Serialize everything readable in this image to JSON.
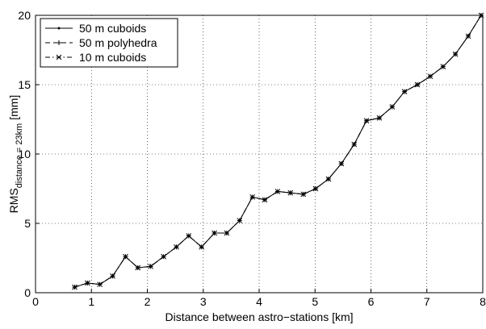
{
  "chart_data": {
    "type": "line",
    "xlabel": "Distance between astro−stations [km]",
    "ylabel": "RMS",
    "ylabel_subscript": "distance = 23km",
    "ylabel_unit": "[mm]",
    "xlim": [
      0,
      8
    ],
    "xticks": [
      0,
      1,
      2,
      3,
      4,
      5,
      6,
      7,
      8
    ],
    "ylim": [
      0,
      20
    ],
    "yticks": [
      0,
      5,
      10,
      15,
      20
    ],
    "grid": true,
    "legend": "upper-left",
    "x": [
      0.7,
      0.93,
      1.15,
      1.38,
      1.61,
      1.83,
      2.06,
      2.29,
      2.52,
      2.74,
      2.97,
      3.2,
      3.42,
      3.65,
      3.88,
      4.1,
      4.33,
      4.56,
      4.79,
      5.01,
      5.24,
      5.47,
      5.7,
      5.92,
      6.15,
      6.38,
      6.6,
      6.83,
      7.06,
      7.29,
      7.51,
      7.74,
      7.97
    ],
    "series": [
      {
        "name": "50 m cuboids",
        "color": "#000000",
        "dash": "solid",
        "marker": "dot",
        "values": [
          0.4,
          0.7,
          0.6,
          1.2,
          2.6,
          1.8,
          1.9,
          2.6,
          3.3,
          4.1,
          3.3,
          4.3,
          4.3,
          5.2,
          6.9,
          6.7,
          7.3,
          7.2,
          7.1,
          7.5,
          8.2,
          9.3,
          10.7,
          12.4,
          12.6,
          13.4,
          14.5,
          15.0,
          15.6,
          16.3,
          17.2,
          18.5,
          20.0
        ]
      },
      {
        "name": "50 m polyhedra",
        "color": "#000000",
        "dash": "dashed",
        "marker": "plus",
        "values": [
          0.4,
          0.7,
          0.6,
          1.2,
          2.6,
          1.8,
          1.9,
          2.6,
          3.3,
          4.1,
          3.3,
          4.3,
          4.3,
          5.2,
          6.9,
          6.7,
          7.3,
          7.2,
          7.1,
          7.5,
          8.2,
          9.3,
          10.7,
          12.4,
          12.6,
          13.4,
          14.5,
          15.0,
          15.6,
          16.3,
          17.2,
          18.5,
          20.0
        ]
      },
      {
        "name": "10 m cuboids",
        "color": "#000000",
        "dash": "dashdot",
        "marker": "x",
        "values": [
          0.4,
          0.7,
          0.6,
          1.2,
          2.6,
          1.8,
          1.9,
          2.6,
          3.3,
          4.1,
          3.3,
          4.3,
          4.3,
          5.2,
          6.9,
          6.7,
          7.3,
          7.2,
          7.1,
          7.5,
          8.2,
          9.3,
          10.7,
          12.4,
          12.6,
          13.4,
          14.5,
          15.0,
          15.6,
          16.3,
          17.2,
          18.5,
          20.0
        ]
      }
    ]
  }
}
